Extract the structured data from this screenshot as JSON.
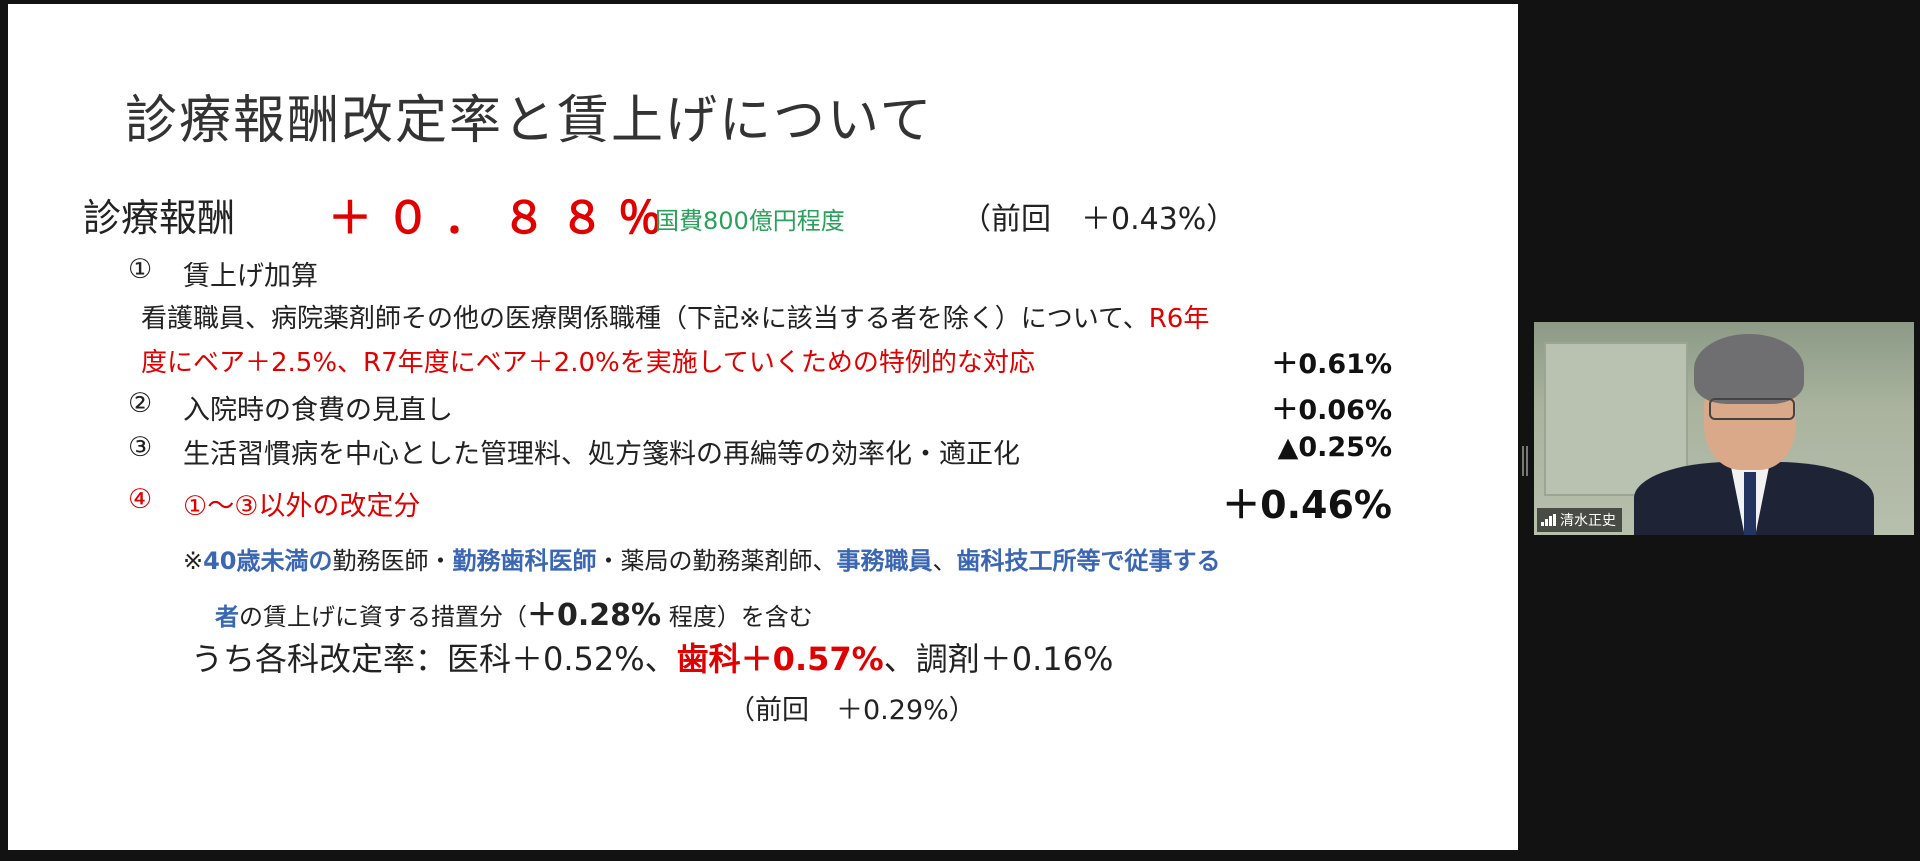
{
  "slide": {
    "title": "診療報酬改定率と賃上げについて",
    "main": {
      "label": "診療報酬",
      "value": "＋０．８８％",
      "note": "国費800億円程度",
      "previous": "（前回　＋0.43%）"
    },
    "items": [
      {
        "num": "①",
        "text": "賃上げ加算",
        "value": ""
      },
      {
        "num": "②",
        "text": "入院時の食費の見直し",
        "value": "＋0.06%"
      },
      {
        "num": "③",
        "text": "生活習慣病を中心とした管理料、処方箋料の再編等の効率化・適正化",
        "value": "▲0.25%"
      },
      {
        "num": "④",
        "text": "①〜③以外の改定分",
        "value": "＋0.46%"
      }
    ],
    "item1_desc": {
      "line1": "看護職員、病院薬剤師その他の医療関係職種（下記※に該当する者を除く）について、",
      "line1_red": "R6年",
      "line2": "度にベア＋2.5%、R7年度にベア＋2.0%を実施していくための特例的な対応",
      "value": "＋0.61%"
    },
    "note": {
      "mark": "※",
      "p1": "40歳未満の",
      "p2": "勤務医師・",
      "p3": "勤務歯科医師",
      "p4": "・薬局の勤務薬剤師、",
      "p5": "事務職員",
      "p6": "、",
      "p7": "歯科技工所等で従事する",
      "p8": "者",
      "p9": "の賃上げに資する措置分（",
      "p10": "＋0.28%",
      "p11": " 程度）を含む"
    },
    "rates": {
      "prefix": "うち各科改定率：医科＋0.52%、",
      "dental": "歯科＋0.57%",
      "suffix": "、調剤＋0.16%",
      "previous": "（前回　＋0.29%）"
    }
  },
  "video": {
    "participant_name": "清水正史",
    "icons": [
      "signal-icon"
    ]
  }
}
